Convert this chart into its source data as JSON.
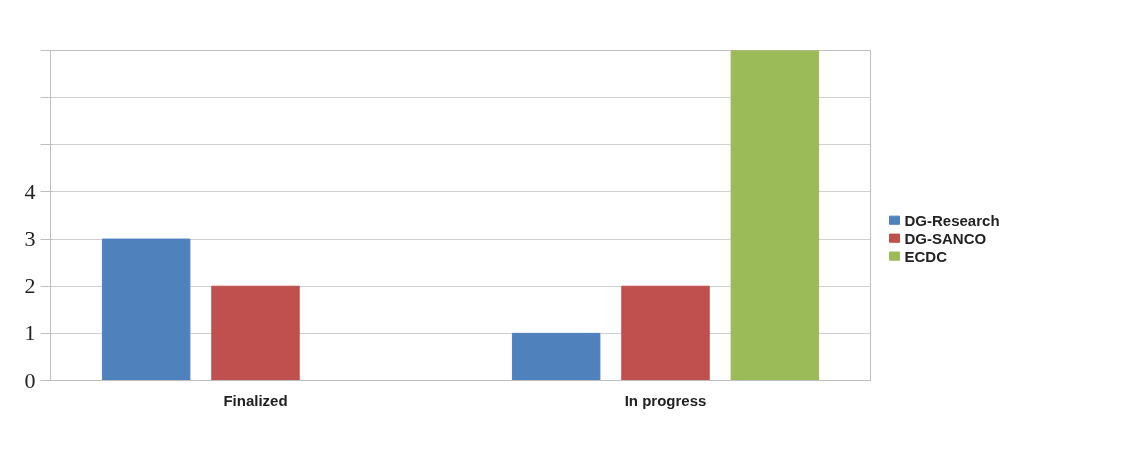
{
  "chart_data": {
    "type": "bar",
    "categories": [
      "Finalized",
      "In progress"
    ],
    "series": [
      {
        "name": "DG-Research",
        "color": "#4f81bd",
        "values": [
          3,
          1
        ]
      },
      {
        "name": "DG-SANCO",
        "color": "#c0504d",
        "values": [
          2,
          2
        ]
      },
      {
        "name": "ECDC",
        "color": "#9bbb59",
        "values": [
          0,
          7
        ]
      }
    ],
    "ylim": [
      0,
      7
    ],
    "yticks": [
      0,
      1,
      2,
      3,
      4,
      {
        "value": 5,
        "label": null
      },
      {
        "value": 6,
        "label": null
      },
      {
        "value": 7,
        "label": null
      }
    ],
    "grid": "y",
    "legend": "right"
  }
}
